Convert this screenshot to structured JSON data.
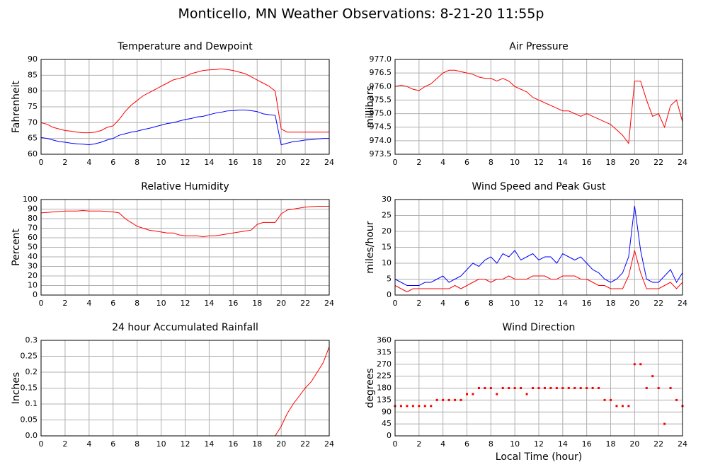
{
  "title": "Monticello, MN Weather Observations: 8-21-20 11:55p",
  "chart_data": [
    {
      "type": "line",
      "title": "Temperature and Dewpoint",
      "ylabel": "Fahrenheit",
      "grid": true,
      "x": [
        0,
        0.5,
        1,
        1.5,
        2,
        2.5,
        3,
        3.5,
        4,
        4.5,
        5,
        5.5,
        6,
        6.5,
        7,
        7.5,
        8,
        8.5,
        9,
        9.5,
        10,
        10.5,
        11,
        11.5,
        12,
        12.5,
        13,
        13.5,
        14,
        14.5,
        15,
        15.5,
        16,
        16.5,
        17,
        17.5,
        18,
        18.5,
        19,
        19.5,
        20,
        20.5,
        21,
        21.5,
        22,
        22.5,
        23,
        23.5,
        24
      ],
      "xlim": [
        0,
        24
      ],
      "xticks": [
        0,
        2,
        4,
        6,
        8,
        10,
        12,
        14,
        16,
        18,
        20,
        22,
        24
      ],
      "ylim": [
        60,
        90
      ],
      "yticks": [
        60,
        65,
        70,
        75,
        80,
        85,
        90
      ],
      "series": [
        {
          "color": "#ff0000",
          "values": [
            70,
            69.5,
            68.5,
            68,
            67.5,
            67.3,
            67,
            66.8,
            66.8,
            67,
            67.5,
            68.5,
            69,
            71,
            73.5,
            75.5,
            77,
            78.5,
            79.5,
            80.5,
            81.5,
            82.5,
            83.5,
            84,
            84.5,
            85.5,
            86,
            86.5,
            86.7,
            86.8,
            87,
            86.8,
            86.5,
            86,
            85.5,
            84.5,
            83.5,
            82.5,
            81.5,
            80,
            68,
            67,
            67,
            67,
            67,
            67,
            67,
            67,
            67
          ]
        },
        {
          "color": "#0000ff",
          "values": [
            65.3,
            65,
            64.5,
            64,
            63.8,
            63.5,
            63.3,
            63.2,
            63,
            63.3,
            63.8,
            64.5,
            65,
            66,
            66.5,
            67,
            67.3,
            67.8,
            68.2,
            68.7,
            69.2,
            69.7,
            70,
            70.5,
            71,
            71.3,
            71.8,
            72,
            72.5,
            73,
            73.3,
            73.7,
            73.8,
            74,
            74,
            73.8,
            73.5,
            72.8,
            72.5,
            72.3,
            63,
            63.5,
            64,
            64.2,
            64.5,
            64.6,
            64.8,
            65,
            65
          ]
        }
      ]
    },
    {
      "type": "line",
      "title": "Air Pressure",
      "ylabel": "millibars",
      "grid": true,
      "x": [
        0,
        0.5,
        1,
        1.5,
        2,
        2.5,
        3,
        3.5,
        4,
        4.5,
        5,
        5.5,
        6,
        6.5,
        7,
        7.5,
        8,
        8.5,
        9,
        9.5,
        10,
        10.5,
        11,
        11.5,
        12,
        12.5,
        13,
        13.5,
        14,
        14.5,
        15,
        15.5,
        16,
        16.5,
        17,
        17.5,
        18,
        18.5,
        19,
        19.5,
        20,
        20.5,
        21,
        21.5,
        22,
        22.5,
        23,
        23.5,
        24
      ],
      "xlim": [
        0,
        24
      ],
      "xticks": [
        0,
        2,
        4,
        6,
        8,
        10,
        12,
        14,
        16,
        18,
        20,
        22,
        24
      ],
      "ylim": [
        973.5,
        977.0
      ],
      "yticks": [
        973.5,
        {
          "value": 974,
          "label": "974.0"
        },
        974.5,
        {
          "value": 975,
          "label": "975.0"
        },
        975.5,
        {
          "value": 976,
          "label": "976.0"
        },
        976.5,
        {
          "value": 977,
          "label": "977.0"
        }
      ],
      "series": [
        {
          "color": "#ff0000",
          "values": [
            976.0,
            976.05,
            976.0,
            975.9,
            975.85,
            976.0,
            976.1,
            976.3,
            976.5,
            976.6,
            976.6,
            976.55,
            976.5,
            976.45,
            976.35,
            976.3,
            976.3,
            976.2,
            976.3,
            976.2,
            976.0,
            975.9,
            975.8,
            975.6,
            975.5,
            975.4,
            975.3,
            975.2,
            975.1,
            975.1,
            975.0,
            974.9,
            975.0,
            974.9,
            974.8,
            974.7,
            974.6,
            974.4,
            974.2,
            973.9,
            976.2,
            976.2,
            975.5,
            974.9,
            975.0,
            974.5,
            975.3,
            975.5,
            974.7
          ]
        }
      ]
    },
    {
      "type": "line",
      "title": "Relative Humidity",
      "ylabel": "Percent",
      "grid": true,
      "x": [
        0,
        0.5,
        1,
        1.5,
        2,
        2.5,
        3,
        3.5,
        4,
        4.5,
        5,
        5.5,
        6,
        6.5,
        7,
        7.5,
        8,
        8.5,
        9,
        9.5,
        10,
        10.5,
        11,
        11.5,
        12,
        12.5,
        13,
        13.5,
        14,
        14.5,
        15,
        15.5,
        16,
        16.5,
        17,
        17.5,
        18,
        18.5,
        19,
        19.5,
        20,
        20.5,
        21,
        21.5,
        22,
        22.5,
        23,
        23.5,
        24
      ],
      "xlim": [
        0,
        24
      ],
      "xticks": [
        0,
        2,
        4,
        6,
        8,
        10,
        12,
        14,
        16,
        18,
        20,
        22,
        24
      ],
      "ylim": [
        0,
        100
      ],
      "yticks": [
        0,
        10,
        20,
        30,
        40,
        50,
        60,
        70,
        80,
        90,
        100
      ],
      "series": [
        {
          "color": "#ff0000",
          "values": [
            86,
            86.5,
            87,
            87.5,
            88,
            88,
            88,
            88.5,
            88,
            88,
            88,
            87.5,
            87,
            86,
            80,
            76,
            72,
            70,
            68,
            67,
            66,
            65,
            65,
            63,
            62,
            62,
            62,
            61,
            62,
            62,
            63,
            64,
            65,
            66,
            67,
            68,
            74,
            76,
            76,
            76,
            85,
            89,
            90,
            91,
            92,
            92.5,
            93,
            93,
            93
          ]
        }
      ]
    },
    {
      "type": "line",
      "title": "Wind Speed and Peak Gust",
      "ylabel": "miles/hour",
      "grid": true,
      "x": [
        0,
        0.5,
        1,
        1.5,
        2,
        2.5,
        3,
        3.5,
        4,
        4.5,
        5,
        5.5,
        6,
        6.5,
        7,
        7.5,
        8,
        8.5,
        9,
        9.5,
        10,
        10.5,
        11,
        11.5,
        12,
        12.5,
        13,
        13.5,
        14,
        14.5,
        15,
        15.5,
        16,
        16.5,
        17,
        17.5,
        18,
        18.5,
        19,
        19.5,
        20,
        20.5,
        21,
        21.5,
        22,
        22.5,
        23,
        23.5,
        24
      ],
      "xlim": [
        0,
        24
      ],
      "xticks": [
        0,
        2,
        4,
        6,
        8,
        10,
        12,
        14,
        16,
        18,
        20,
        22,
        24
      ],
      "ylim": [
        0,
        30
      ],
      "yticks": [
        0,
        5,
        10,
        15,
        20,
        25,
        30
      ],
      "series": [
        {
          "color": "#0000ff",
          "values": [
            5,
            4,
            3,
            3,
            3,
            4,
            4,
            5,
            6,
            4,
            5,
            6,
            8,
            10,
            9,
            11,
            12,
            10,
            13,
            12,
            14,
            11,
            12,
            13,
            11,
            12,
            12,
            10,
            13,
            12,
            11,
            12,
            10,
            8,
            7,
            5,
            4,
            5,
            7,
            12,
            28,
            14,
            5,
            4,
            4,
            6,
            8,
            4,
            7
          ]
        },
        {
          "color": "#ff0000",
          "values": [
            3,
            2,
            1,
            2,
            2,
            2,
            2,
            2,
            2,
            2,
            3,
            2,
            3,
            4,
            5,
            5,
            4,
            5,
            5,
            6,
            5,
            5,
            5,
            6,
            6,
            6,
            5,
            5,
            6,
            6,
            6,
            5,
            5,
            4,
            3,
            3,
            2,
            2,
            2,
            6,
            14,
            7,
            2,
            2,
            2,
            3,
            4,
            2,
            4
          ]
        }
      ]
    },
    {
      "type": "line",
      "title": "24 hour Accumulated Rainfall",
      "ylabel": "Inches",
      "grid": true,
      "x": [
        0,
        0.5,
        1,
        1.5,
        2,
        2.5,
        3,
        3.5,
        4,
        4.5,
        5,
        5.5,
        6,
        6.5,
        7,
        7.5,
        8,
        8.5,
        9,
        9.5,
        10,
        10.5,
        11,
        11.5,
        12,
        12.5,
        13,
        13.5,
        14,
        14.5,
        15,
        15.5,
        16,
        16.5,
        17,
        17.5,
        18,
        18.5,
        19,
        19.5,
        20,
        20.5,
        21,
        21.5,
        22,
        22.5,
        23,
        23.5,
        24
      ],
      "xlim": [
        0,
        24
      ],
      "xticks": [
        0,
        2,
        4,
        6,
        8,
        10,
        12,
        14,
        16,
        18,
        20,
        22,
        24
      ],
      "ylim": [
        0,
        0.3
      ],
      "yticks": [
        {
          "value": 0,
          "label": "0.0"
        },
        0.05,
        0.1,
        0.15,
        0.2,
        0.25,
        0.3
      ],
      "series": [
        {
          "color": "#ff0000",
          "values": [
            0,
            0,
            0,
            0,
            0,
            0,
            0,
            0,
            0,
            0,
            0,
            0,
            0,
            0,
            0,
            0,
            0,
            0,
            0,
            0,
            0,
            0,
            0,
            0,
            0,
            0,
            0,
            0,
            0,
            0,
            0,
            0,
            0,
            0,
            0,
            0,
            0,
            0,
            0,
            0,
            0.03,
            0.07,
            0.1,
            0.125,
            0.15,
            0.17,
            0.2,
            0.23,
            0.28
          ]
        }
      ]
    },
    {
      "type": "scatter",
      "title": "Wind Direction",
      "ylabel": "degrees",
      "xlabel": "Local Time (hour)",
      "grid": true,
      "x": [
        0,
        0.5,
        1,
        1.5,
        2,
        2.5,
        3,
        3.5,
        4,
        4.5,
        5,
        5.5,
        6,
        6.5,
        7,
        7.5,
        8,
        8.5,
        9,
        9.5,
        10,
        10.5,
        11,
        11.5,
        12,
        12.5,
        13,
        13.5,
        14,
        14.5,
        15,
        15.5,
        16,
        16.5,
        17,
        17.5,
        18,
        18.5,
        19,
        19.5,
        20,
        20.5,
        21,
        21.5,
        22,
        22.5,
        23,
        23.5,
        24
      ],
      "xlim": [
        0,
        24
      ],
      "xticks": [
        0,
        2,
        4,
        6,
        8,
        10,
        12,
        14,
        16,
        18,
        20,
        22,
        24
      ],
      "ylim": [
        0,
        360
      ],
      "yticks": [
        0,
        45,
        90,
        135,
        180,
        225,
        270,
        315,
        360
      ],
      "series": [
        {
          "color": "#ff0000",
          "values": [
            112.5,
            112.5,
            112.5,
            112.5,
            112.5,
            112.5,
            112.5,
            135,
            135,
            135,
            135,
            135,
            157.5,
            157.5,
            180,
            180,
            180,
            157.5,
            180,
            180,
            180,
            180,
            157.5,
            180,
            180,
            180,
            180,
            180,
            180,
            180,
            180,
            180,
            180,
            180,
            180,
            135,
            135,
            112.5,
            112.5,
            112.5,
            270,
            270,
            180,
            225,
            180,
            45,
            180,
            135,
            112.5
          ]
        }
      ]
    }
  ]
}
